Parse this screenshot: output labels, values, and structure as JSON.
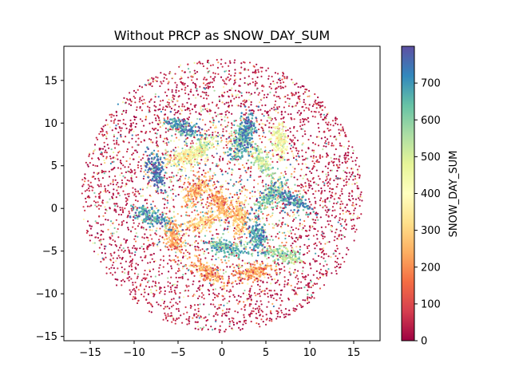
{
  "chart_data": {
    "type": "scatter",
    "title": "Without PRCP as SNOW_DAY_SUM",
    "xlabel": "",
    "ylabel": "",
    "xlim": [
      -18,
      18
    ],
    "ylim": [
      -15.5,
      19
    ],
    "xticks": [
      -15,
      -10,
      -5,
      0,
      5,
      10,
      15
    ],
    "yticks": [
      -15,
      -10,
      -5,
      0,
      5,
      10,
      15
    ],
    "grid": false,
    "colorbar": {
      "label": "SNOW_DAY_SUM",
      "range": [
        0,
        800
      ],
      "ticks": [
        0,
        100,
        200,
        300,
        400,
        500,
        600,
        700
      ],
      "colormap": "Spectral",
      "colors": [
        "#9e0142",
        "#d53e4f",
        "#f46d43",
        "#fdae61",
        "#fee08b",
        "#ffffbf",
        "#e6f598",
        "#abdda4",
        "#66c2a5",
        "#3288bd",
        "#5e4fa2"
      ]
    },
    "point_cloud": {
      "shape": "disk",
      "center": [
        0,
        1.5
      ],
      "radius": 16,
      "point_count": 4200,
      "clusters": [
        {
          "x": -4.5,
          "y": 9.5,
          "value": 700
        },
        {
          "x": -2.5,
          "y": 7.0,
          "value": 480
        },
        {
          "x": 2.0,
          "y": 8.0,
          "value": 650
        },
        {
          "x": 4.5,
          "y": 5.5,
          "value": 520
        },
        {
          "x": 3.0,
          "y": 9.0,
          "value": 720
        },
        {
          "x": -7.5,
          "y": 4.5,
          "value": 760
        },
        {
          "x": -3.0,
          "y": 2.0,
          "value": 260
        },
        {
          "x": 0.0,
          "y": 0.5,
          "value": 230
        },
        {
          "x": -2.0,
          "y": -1.5,
          "value": 300
        },
        {
          "x": 2.0,
          "y": -1.0,
          "value": 280
        },
        {
          "x": 5.5,
          "y": 1.5,
          "value": 600
        },
        {
          "x": 8.0,
          "y": 1.0,
          "value": 700
        },
        {
          "x": -5.5,
          "y": -3.5,
          "value": 230
        },
        {
          "x": 0.5,
          "y": -4.5,
          "value": 650
        },
        {
          "x": 4.0,
          "y": -3.0,
          "value": 700
        },
        {
          "x": -1.5,
          "y": -7.5,
          "value": 240
        },
        {
          "x": 3.5,
          "y": -7.5,
          "value": 220
        },
        {
          "x": -8.0,
          "y": -1.0,
          "value": 680
        },
        {
          "x": 7.0,
          "y": -5.5,
          "value": 560
        },
        {
          "x": -4.0,
          "y": 6.0,
          "value": 380
        },
        {
          "x": 6.5,
          "y": 8.0,
          "value": 430
        }
      ]
    }
  }
}
